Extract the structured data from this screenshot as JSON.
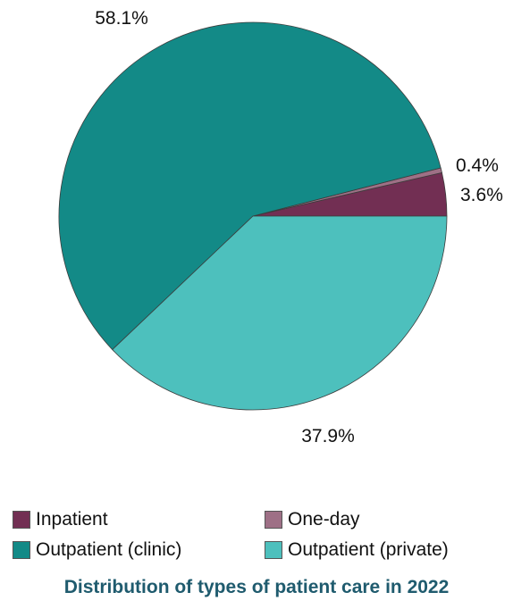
{
  "chart_data": {
    "type": "pie",
    "title": "Distribution of types of patient care in 2022",
    "slices": [
      {
        "name": "Inpatient",
        "value": 3.6,
        "label": "3.6%",
        "color": "#722f53"
      },
      {
        "name": "One-day",
        "value": 0.4,
        "label": "0.4%",
        "color": "#9e7086"
      },
      {
        "name": "Outpatient (clinic)",
        "value": 58.1,
        "label": "58.1%",
        "color": "#138a87"
      },
      {
        "name": "Outpatient (private)",
        "value": 37.9,
        "label": "37.9%",
        "color": "#4dc0bd"
      }
    ],
    "legend_position": "bottom",
    "slice_labels": "outside"
  }
}
